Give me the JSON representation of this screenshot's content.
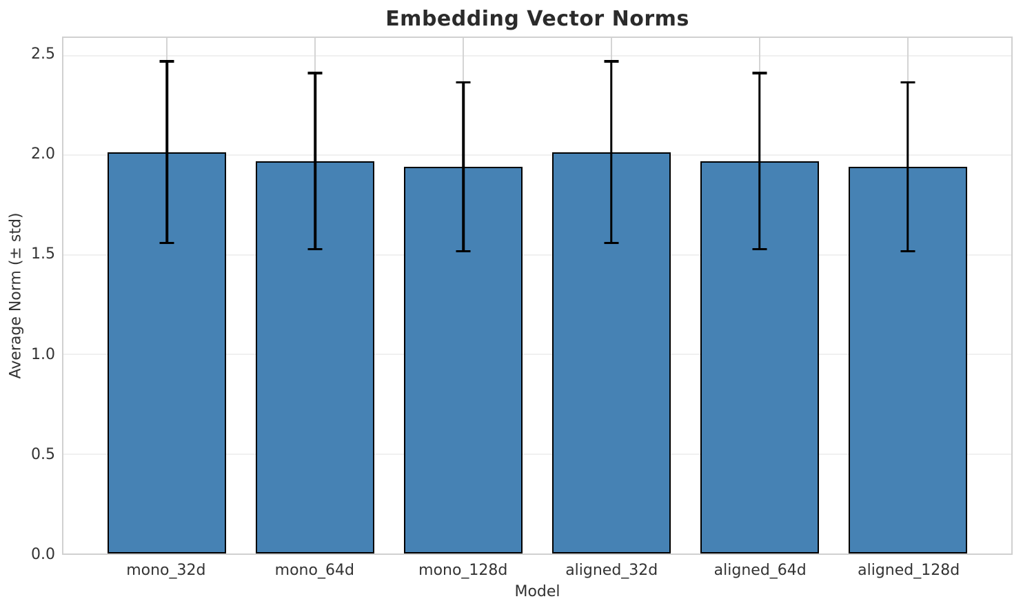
{
  "chart_data": {
    "type": "bar",
    "title": "Embedding Vector Norms",
    "xlabel": "Model",
    "ylabel": "Average Norm (± std)",
    "categories": [
      "mono_32d",
      "mono_64d",
      "mono_128d",
      "aligned_32d",
      "aligned_64d",
      "aligned_128d"
    ],
    "series": [
      {
        "name": "Average Norm",
        "values": [
          2.016,
          1.971,
          1.943,
          2.016,
          1.971,
          1.943
        ],
        "errors": [
          0.456,
          0.443,
          0.424,
          0.456,
          0.443,
          0.424
        ]
      }
    ],
    "error_bar_tops": [
      2.472,
      2.414,
      2.367,
      2.472,
      2.414,
      2.367
    ],
    "error_bar_bottoms": [
      1.56,
      1.528,
      1.519,
      1.56,
      1.528,
      1.519
    ],
    "yticks": [
      0.0,
      0.5,
      1.0,
      1.5,
      2.0,
      2.5
    ],
    "ytick_labels": [
      "0.0",
      "0.5",
      "1.0",
      "1.5",
      "2.0",
      "2.5"
    ],
    "ylim": [
      0,
      2.59
    ],
    "xlim": [
      -0.7,
      5.7
    ],
    "bar_width": 0.8,
    "colors": {
      "bar_fill": "#4682B4",
      "bar_edge": "#000000",
      "error_bar": "#000000",
      "grid_horizontal": "#f0f0f0",
      "grid_vertical": "#d4d4d4",
      "spine": "#d0d0d0",
      "title_text": "#2b2b2b",
      "tick_text": "#333333"
    },
    "legend": "none",
    "grid": true
  }
}
